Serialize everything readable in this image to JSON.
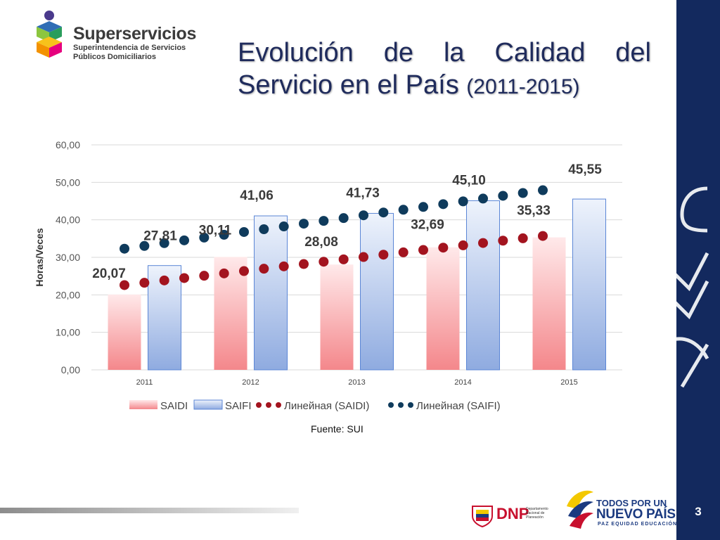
{
  "brand": {
    "name": "Superservicios",
    "subtitle_line1": "Superintendencia de Servicios",
    "subtitle_line2": "Públicos Domiciliarios"
  },
  "slide": {
    "title_main": "Evolución de la Calidad del Servicio en el País",
    "title_years": "(2011-2015)",
    "source": "Fuente: SUI",
    "page_number": "3"
  },
  "footer": {
    "dnp_label": "DNP",
    "dnp_small": "Departamento Nacional de Planeación",
    "gov_line1": "TODOS POR UN",
    "gov_line2": "NUEVO PAÍS",
    "gov_line3": "PAZ EQUIDAD EDUCACIÓN"
  },
  "colors": {
    "saidi": "#f4a6a8",
    "saifi": "#a9bfe8",
    "trend_saidi": "#a3141f",
    "trend_saifi": "#0f3b5c",
    "band": "#13295e"
  },
  "chart_data": {
    "type": "bar",
    "title": "",
    "ylabel": "Horas/Veces",
    "xlabel": "",
    "ylim": [
      0,
      60
    ],
    "yticks": [
      "0,00",
      "10,00",
      "20,00",
      "30,00",
      "40,00",
      "50,00",
      "60,00"
    ],
    "categories": [
      "2011",
      "2012",
      "2013",
      "2014",
      "2015"
    ],
    "series": [
      {
        "name": "SAIDI",
        "values": [
          20.07,
          30.11,
          28.08,
          32.69,
          35.33
        ],
        "labels": [
          "20,07",
          "30,11",
          "28,08",
          "32,69",
          "35,33"
        ]
      },
      {
        "name": "SAIFI",
        "values": [
          27.81,
          41.06,
          41.73,
          45.1,
          45.55
        ],
        "labels": [
          "27,81",
          "41,06",
          "41,73",
          "45,10",
          "45,55"
        ]
      }
    ],
    "trendlines": [
      {
        "name": "Линейная (SAIDI)",
        "type": "linear",
        "start": 22.6,
        "end": 35.7
      },
      {
        "name": "Линейная (SAIFI)",
        "type": "linear",
        "start": 32.3,
        "end": 47.9
      }
    ],
    "legend": [
      "SAIDI",
      "SAIFI",
      "Линейная (SAIDI)",
      "Линейная (SAIFI)"
    ],
    "legend_position": "bottom"
  }
}
